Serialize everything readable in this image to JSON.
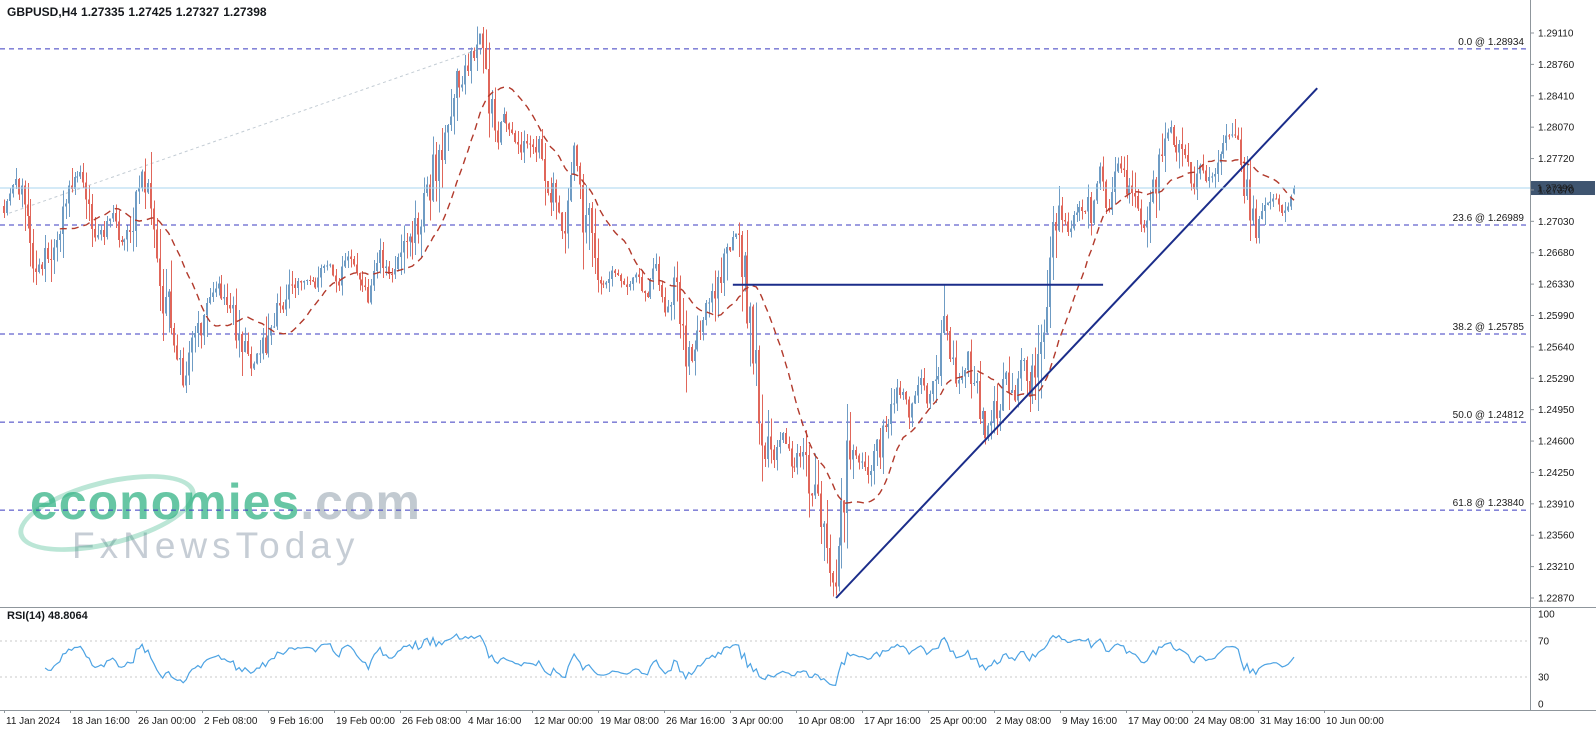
{
  "header": {
    "symbol_period": "GBPUSD,H4",
    "open": "1.27335",
    "high": "1.27425",
    "low": "1.27327",
    "close": "1.27398"
  },
  "watermark": {
    "brand": "economies",
    "domain": ".com",
    "tagline": "FxNewsToday"
  },
  "colors": {
    "up": "#6f9cc4",
    "down": "#e0665a",
    "ma": "#b23a2c",
    "fib": "#3b3bc0",
    "trend": "#1b2d8a",
    "price_line": "#a9d4ef",
    "price_tag_bg": "#3f5570",
    "rsi_line": "#4da3e3",
    "grid": "#8f969c",
    "guide": "#c3ccd4",
    "level_dotted": "#c9c9c9"
  },
  "chart_data": {
    "type": "candlestick",
    "title": "GBPUSD,H4",
    "symbol": "GBPUSD",
    "timeframe": "H4",
    "current_price": 1.27398,
    "current_price_label": "1.27398",
    "last_candle_ohlc": [
      1.27335,
      1.27425,
      1.27327,
      1.27398
    ],
    "price_axis_top": 1.2911,
    "price_axis_bottom": 1.2287,
    "y_axis_labels": [
      "1.29110",
      "1.28760",
      "1.28410",
      "1.28070",
      "1.27720",
      "1.27370",
      "1.27030",
      "1.26680",
      "1.26330",
      "1.25990",
      "1.25640",
      "1.25290",
      "1.24950",
      "1.24600",
      "1.24250",
      "1.23910",
      "1.23560",
      "1.23210",
      "1.22870"
    ],
    "x_axis_labels": [
      "11 Jan 2024",
      "18 Jan 16:00",
      "26 Jan 00:00",
      "2 Feb 08:00",
      "9 Feb 16:00",
      "19 Feb 00:00",
      "26 Feb 08:00",
      "4 Mar 16:00",
      "12 Mar 00:00",
      "19 Mar 08:00",
      "26 Mar 16:00",
      "3 Apr 00:00",
      "10 Apr 08:00",
      "17 Apr 16:00",
      "25 Apr 00:00",
      "2 May 08:00",
      "9 May 16:00",
      "17 May 00:00",
      "24 May 08:00",
      "31 May 16:00",
      "10 Jun 00:00"
    ],
    "fibonacci_levels": [
      {
        "label": "0.0 @ 1.28934",
        "price": 1.28934
      },
      {
        "label": "23.6 @ 1.26989",
        "price": 1.26989
      },
      {
        "label": "38.2 @ 1.25785",
        "price": 1.25785
      },
      {
        "label": "50.0 @ 1.24812",
        "price": 1.24812
      },
      {
        "label": "61.8 @ 1.23840",
        "price": 1.2384
      }
    ],
    "support_line": {
      "price": 1.2633,
      "x1": 0.565,
      "x2": 0.852
    },
    "trend_line": {
      "x1": 0.645,
      "price1": 1.2287,
      "x2": 1.018,
      "price2": 1.285
    },
    "guide_line": {
      "x1": 0.004,
      "price1": 1.2712,
      "x2": 0.372,
      "price2": 1.2895
    },
    "candle_count": 440,
    "ma_period": 20,
    "rsi": {
      "label": "RSI(14) 48.8064",
      "period": 14,
      "value": 48.8064,
      "axis_labels": [
        "100",
        "70",
        "30",
        "0"
      ],
      "levels": [
        70,
        30
      ]
    },
    "price_path": [
      [
        0.0,
        1.272
      ],
      [
        0.01,
        1.2752
      ],
      [
        0.018,
        1.27
      ],
      [
        0.026,
        1.2648
      ],
      [
        0.034,
        1.2672
      ],
      [
        0.044,
        1.2705
      ],
      [
        0.052,
        1.274
      ],
      [
        0.06,
        1.2752
      ],
      [
        0.068,
        1.27
      ],
      [
        0.076,
        1.2686
      ],
      [
        0.084,
        1.2722
      ],
      [
        0.092,
        1.2672
      ],
      [
        0.1,
        1.2712
      ],
      [
        0.107,
        1.2752
      ],
      [
        0.113,
        1.2718
      ],
      [
        0.121,
        1.2645
      ],
      [
        0.129,
        1.2588
      ],
      [
        0.14,
        1.2525
      ],
      [
        0.149,
        1.2578
      ],
      [
        0.158,
        1.2615
      ],
      [
        0.166,
        1.263
      ],
      [
        0.174,
        1.2615
      ],
      [
        0.182,
        1.2578
      ],
      [
        0.191,
        1.2542
      ],
      [
        0.201,
        1.256
      ],
      [
        0.211,
        1.2602
      ],
      [
        0.221,
        1.2625
      ],
      [
        0.231,
        1.2642
      ],
      [
        0.241,
        1.263
      ],
      [
        0.251,
        1.2655
      ],
      [
        0.259,
        1.2635
      ],
      [
        0.267,
        1.2662
      ],
      [
        0.275,
        1.2638
      ],
      [
        0.283,
        1.2622
      ],
      [
        0.291,
        1.2665
      ],
      [
        0.299,
        1.2648
      ],
      [
        0.307,
        1.2662
      ],
      [
        0.315,
        1.2688
      ],
      [
        0.323,
        1.2705
      ],
      [
        0.331,
        1.2742
      ],
      [
        0.341,
        1.2802
      ],
      [
        0.352,
        1.2858
      ],
      [
        0.362,
        1.2882
      ],
      [
        0.37,
        1.2892
      ],
      [
        0.376,
        1.2828
      ],
      [
        0.382,
        1.2795
      ],
      [
        0.388,
        1.2822
      ],
      [
        0.395,
        1.2802
      ],
      [
        0.403,
        1.2786
      ],
      [
        0.411,
        1.279
      ],
      [
        0.419,
        1.2762
      ],
      [
        0.427,
        1.2722
      ],
      [
        0.435,
        1.2705
      ],
      [
        0.442,
        1.2792
      ],
      [
        0.449,
        1.2718
      ],
      [
        0.457,
        1.2658
      ],
      [
        0.465,
        1.2628
      ],
      [
        0.473,
        1.2652
      ],
      [
        0.481,
        1.2625
      ],
      [
        0.489,
        1.265
      ],
      [
        0.497,
        1.2618
      ],
      [
        0.505,
        1.265
      ],
      [
        0.513,
        1.2608
      ],
      [
        0.521,
        1.2632
      ],
      [
        0.529,
        1.2548
      ],
      [
        0.537,
        1.2565
      ],
      [
        0.545,
        1.2602
      ],
      [
        0.553,
        1.2628
      ],
      [
        0.56,
        1.2652
      ],
      [
        0.568,
        1.2698
      ],
      [
        0.575,
        1.264
      ],
      [
        0.581,
        1.256
      ],
      [
        0.589,
        1.2472
      ],
      [
        0.597,
        1.2442
      ],
      [
        0.604,
        1.2468
      ],
      [
        0.611,
        1.2432
      ],
      [
        0.617,
        1.2455
      ],
      [
        0.623,
        1.2422
      ],
      [
        0.629,
        1.2392
      ],
      [
        0.636,
        1.2345
      ],
      [
        0.645,
        1.2292
      ],
      [
        0.651,
        1.2398
      ],
      [
        0.656,
        1.2452
      ],
      [
        0.663,
        1.2438
      ],
      [
        0.671,
        1.2432
      ],
      [
        0.679,
        1.2455
      ],
      [
        0.687,
        1.2495
      ],
      [
        0.695,
        1.2518
      ],
      [
        0.703,
        1.2488
      ],
      [
        0.71,
        1.2532
      ],
      [
        0.716,
        1.2495
      ],
      [
        0.723,
        1.2525
      ],
      [
        0.729,
        1.2598
      ],
      [
        0.734,
        1.2545
      ],
      [
        0.74,
        1.252
      ],
      [
        0.747,
        1.255
      ],
      [
        0.755,
        1.2498
      ],
      [
        0.762,
        1.2468
      ],
      [
        0.77,
        1.2498
      ],
      [
        0.777,
        1.2525
      ],
      [
        0.783,
        1.2512
      ],
      [
        0.789,
        1.2548
      ],
      [
        0.795,
        1.2522
      ],
      [
        0.801,
        1.2558
      ],
      [
        0.807,
        1.2598
      ],
      [
        0.813,
        1.2682
      ],
      [
        0.819,
        1.2705
      ],
      [
        0.825,
        1.2688
      ],
      [
        0.831,
        1.2705
      ],
      [
        0.837,
        1.2725
      ],
      [
        0.843,
        1.2702
      ],
      [
        0.849,
        1.2762
      ],
      [
        0.855,
        1.2708
      ],
      [
        0.861,
        1.2745
      ],
      [
        0.867,
        1.2772
      ],
      [
        0.873,
        1.2722
      ],
      [
        0.879,
        1.2712
      ],
      [
        0.885,
        1.2702
      ],
      [
        0.891,
        1.2745
      ],
      [
        0.897,
        1.2775
      ],
      [
        0.903,
        1.2808
      ],
      [
        0.909,
        1.2772
      ],
      [
        0.915,
        1.2785
      ],
      [
        0.921,
        1.2742
      ],
      [
        0.927,
        1.2762
      ],
      [
        0.933,
        1.2742
      ],
      [
        0.939,
        1.2772
      ],
      [
        0.945,
        1.2788
      ],
      [
        0.952,
        1.2802
      ],
      [
        0.958,
        1.2778
      ],
      [
        0.964,
        1.274
      ],
      [
        0.97,
        1.2695
      ],
      [
        0.977,
        1.272
      ],
      [
        0.984,
        1.2732
      ],
      [
        0.991,
        1.2715
      ],
      [
        1.0,
        1.27398
      ]
    ]
  }
}
